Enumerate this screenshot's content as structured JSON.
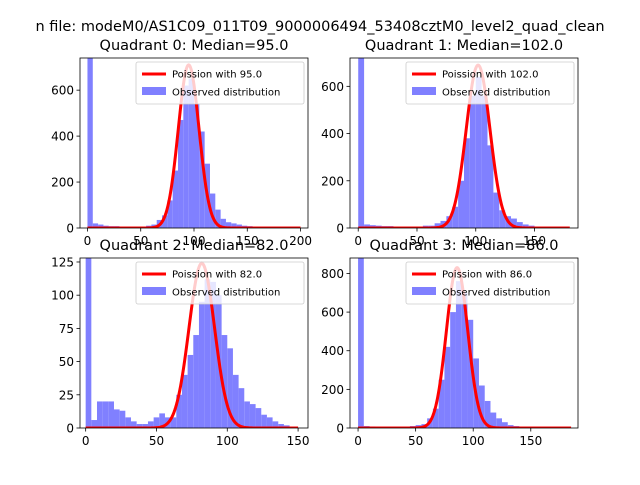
{
  "figure_title": "n file: modeM0/AS1C09_011T09_9000006494_53408cztM0_level2_quad_clean",
  "colors": {
    "hist": "#8080ff",
    "fit": "#ff0000"
  },
  "chart_data": [
    {
      "type": "bar",
      "title": "Quadrant 0: Median=95.0",
      "xlim": [
        -7,
        207
      ],
      "ylim": [
        0,
        740
      ],
      "xticks": [
        0,
        50,
        100,
        150,
        200
      ],
      "yticks": [
        0,
        200,
        400,
        600
      ],
      "bin_width": 5,
      "legend": {
        "placement": "top-right",
        "entries": [
          "Poission with 95.0",
          "Observed distribution"
        ]
      },
      "series": [
        {
          "name": "Observed distribution",
          "type": "histogram",
          "bins": [
            [
              0,
              5,
              740
            ],
            [
              5,
              10,
              20
            ],
            [
              10,
              15,
              15
            ],
            [
              15,
              20,
              10
            ],
            [
              20,
              25,
              8
            ],
            [
              25,
              30,
              8
            ],
            [
              30,
              35,
              5
            ],
            [
              35,
              40,
              5
            ],
            [
              40,
              45,
              5
            ],
            [
              45,
              50,
              5
            ],
            [
              50,
              55,
              5
            ],
            [
              55,
              60,
              10
            ],
            [
              60,
              65,
              15
            ],
            [
              65,
              70,
              35
            ],
            [
              70,
              75,
              55
            ],
            [
              75,
              80,
              120
            ],
            [
              80,
              85,
              250
            ],
            [
              85,
              90,
              470
            ],
            [
              90,
              95,
              620
            ],
            [
              95,
              100,
              650
            ],
            [
              100,
              105,
              540
            ],
            [
              105,
              110,
              420
            ],
            [
              110,
              115,
              280
            ],
            [
              115,
              120,
              150
            ],
            [
              120,
              125,
              80
            ],
            [
              125,
              130,
              40
            ],
            [
              130,
              135,
              25
            ],
            [
              135,
              140,
              20
            ],
            [
              140,
              145,
              15
            ],
            [
              145,
              150,
              10
            ],
            [
              150,
              155,
              8
            ],
            [
              155,
              160,
              5
            ],
            [
              160,
              165,
              5
            ],
            [
              165,
              170,
              3
            ],
            [
              170,
              175,
              2
            ],
            [
              175,
              180,
              2
            ]
          ]
        },
        {
          "name": "Poission with 95.0",
          "type": "line",
          "mean": 95.0,
          "peak": 710,
          "x_range": [
            0,
            200
          ]
        }
      ]
    },
    {
      "type": "bar",
      "title": "Quadrant 1: Median=102.0",
      "xlim": [
        -7,
        187
      ],
      "ylim": [
        0,
        720
      ],
      "xticks": [
        0,
        50,
        100,
        150
      ],
      "yticks": [
        0,
        200,
        400,
        600
      ],
      "bin_width": 5,
      "legend": {
        "placement": "top-right",
        "entries": [
          "Poission with 102.0",
          "Observed distribution"
        ]
      },
      "series": [
        {
          "name": "Observed distribution",
          "type": "histogram",
          "bins": [
            [
              0,
              5,
              720
            ],
            [
              5,
              10,
              15
            ],
            [
              10,
              15,
              12
            ],
            [
              15,
              20,
              10
            ],
            [
              20,
              25,
              8
            ],
            [
              25,
              30,
              8
            ],
            [
              30,
              35,
              5
            ],
            [
              35,
              40,
              5
            ],
            [
              40,
              45,
              5
            ],
            [
              45,
              50,
              5
            ],
            [
              50,
              55,
              5
            ],
            [
              55,
              60,
              10
            ],
            [
              60,
              65,
              10
            ],
            [
              65,
              70,
              20
            ],
            [
              70,
              75,
              30
            ],
            [
              75,
              80,
              50
            ],
            [
              80,
              85,
              90
            ],
            [
              85,
              90,
              200
            ],
            [
              90,
              95,
              380
            ],
            [
              95,
              100,
              560
            ],
            [
              100,
              105,
              640
            ],
            [
              105,
              110,
              560
            ],
            [
              110,
              115,
              350
            ],
            [
              115,
              120,
              150
            ],
            [
              120,
              125,
              75
            ],
            [
              125,
              130,
              50
            ],
            [
              130,
              135,
              40
            ],
            [
              135,
              140,
              25
            ],
            [
              140,
              145,
              15
            ],
            [
              145,
              150,
              10
            ],
            [
              150,
              155,
              5
            ],
            [
              155,
              160,
              5
            ],
            [
              160,
              165,
              3
            ]
          ]
        },
        {
          "name": "Poission with 102.0",
          "type": "line",
          "mean": 102.0,
          "peak": 690,
          "x_range": [
            0,
            180
          ]
        }
      ]
    },
    {
      "type": "bar",
      "title": "Quadrant 2: Median=82.0",
      "xlim": [
        -4,
        157
      ],
      "ylim": [
        0,
        128
      ],
      "xticks": [
        0,
        50,
        100,
        150
      ],
      "yticks": [
        0,
        25,
        50,
        75,
        100,
        125
      ],
      "bin_width": 4,
      "legend": {
        "placement": "top-right",
        "entries": [
          "Poission with 82.0",
          "Observed distribution"
        ]
      },
      "series": [
        {
          "name": "Observed distribution",
          "type": "histogram",
          "bins": [
            [
              0,
              4,
              128
            ],
            [
              4,
              8,
              6
            ],
            [
              8,
              12,
              20
            ],
            [
              12,
              16,
              20
            ],
            [
              16,
              20,
              20
            ],
            [
              20,
              24,
              14
            ],
            [
              24,
              28,
              13
            ],
            [
              28,
              32,
              8
            ],
            [
              32,
              36,
              5
            ],
            [
              36,
              40,
              3
            ],
            [
              40,
              44,
              3
            ],
            [
              44,
              48,
              5
            ],
            [
              48,
              52,
              8
            ],
            [
              52,
              56,
              11
            ],
            [
              56,
              60,
              8
            ],
            [
              60,
              64,
              8
            ],
            [
              64,
              68,
              25
            ],
            [
              68,
              72,
              40
            ],
            [
              72,
              76,
              55
            ],
            [
              76,
              80,
              70
            ],
            [
              80,
              84,
              95
            ],
            [
              84,
              88,
              112
            ],
            [
              88,
              92,
              110
            ],
            [
              92,
              96,
              100
            ],
            [
              96,
              100,
              70
            ],
            [
              100,
              104,
              60
            ],
            [
              104,
              108,
              40
            ],
            [
              108,
              112,
              30
            ],
            [
              112,
              116,
              20
            ],
            [
              116,
              120,
              18
            ],
            [
              120,
              124,
              15
            ],
            [
              124,
              128,
              10
            ],
            [
              128,
              132,
              8
            ],
            [
              132,
              136,
              5
            ],
            [
              136,
              140,
              3
            ],
            [
              140,
              144,
              2
            ],
            [
              144,
              148,
              1
            ]
          ]
        },
        {
          "name": "Poission with 82.0",
          "type": "line",
          "mean": 82.0,
          "peak": 124,
          "x_range": [
            0,
            150
          ]
        }
      ]
    },
    {
      "type": "bar",
      "title": "Quadrant 3: Median=86.0",
      "xlim": [
        -7,
        191
      ],
      "ylim": [
        0,
        880
      ],
      "xticks": [
        0,
        50,
        100,
        150
      ],
      "yticks": [
        0,
        200,
        400,
        600,
        800
      ],
      "bin_width": 5,
      "legend": {
        "placement": "top-right",
        "entries": [
          "Poission with 86.0",
          "Observed distribution"
        ]
      },
      "series": [
        {
          "name": "Observed distribution",
          "type": "histogram",
          "bins": [
            [
              0,
              5,
              880
            ],
            [
              5,
              10,
              10
            ],
            [
              10,
              15,
              8
            ],
            [
              15,
              20,
              5
            ],
            [
              20,
              25,
              5
            ],
            [
              25,
              30,
              5
            ],
            [
              30,
              35,
              5
            ],
            [
              35,
              40,
              5
            ],
            [
              40,
              45,
              5
            ],
            [
              45,
              50,
              10
            ],
            [
              50,
              55,
              15
            ],
            [
              55,
              60,
              20
            ],
            [
              60,
              65,
              50
            ],
            [
              65,
              70,
              100
            ],
            [
              70,
              75,
              250
            ],
            [
              75,
              80,
              420
            ],
            [
              80,
              85,
              600
            ],
            [
              85,
              90,
              760
            ],
            [
              90,
              95,
              700
            ],
            [
              95,
              100,
              560
            ],
            [
              100,
              105,
              360
            ],
            [
              105,
              110,
              220
            ],
            [
              110,
              115,
              140
            ],
            [
              115,
              120,
              80
            ],
            [
              120,
              125,
              50
            ],
            [
              125,
              130,
              30
            ],
            [
              130,
              135,
              15
            ],
            [
              135,
              140,
              10
            ],
            [
              140,
              145,
              6
            ],
            [
              145,
              150,
              5
            ],
            [
              150,
              155,
              3
            ],
            [
              155,
              160,
              2
            ],
            [
              160,
              165,
              2
            ]
          ]
        },
        {
          "name": "Poission with 86.0",
          "type": "line",
          "mean": 86.0,
          "peak": 830,
          "x_range": [
            0,
            185
          ]
        }
      ]
    }
  ]
}
